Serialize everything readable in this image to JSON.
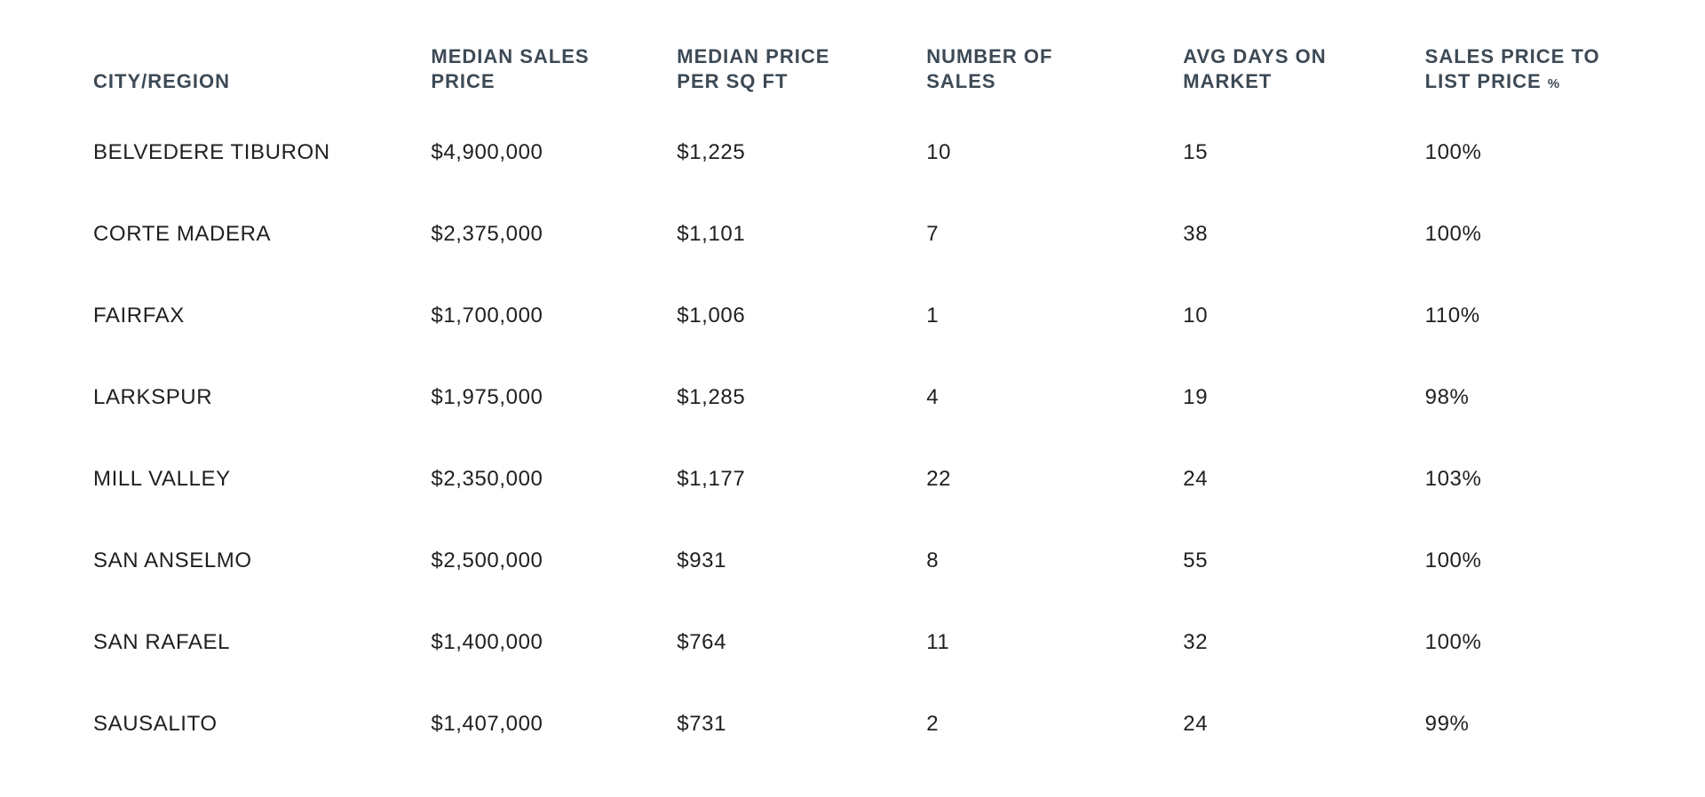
{
  "colors": {
    "background": "#ffffff",
    "header_text": "#3d4a55",
    "body_text": "#1e1f21"
  },
  "table": {
    "columns": [
      {
        "key": "city",
        "label": "CITY/REGION"
      },
      {
        "key": "median_sales_price",
        "label": "MEDIAN SALES\nPRICE"
      },
      {
        "key": "median_price_per_sqft",
        "label": "MEDIAN PRICE\nPER SQ FT"
      },
      {
        "key": "number_of_sales",
        "label": "NUMBER OF\nSALES"
      },
      {
        "key": "avg_days_on_market",
        "label": "AVG DAYS ON\nMARKET"
      },
      {
        "key": "sales_price_to_list",
        "label": "SALES PRICE TO\nLIST PRICE",
        "suffix": "%"
      }
    ],
    "rows": [
      [
        "BELVEDERE TIBURON",
        "$4,900,000",
        "$1,225",
        "10",
        "15",
        "100%"
      ],
      [
        "CORTE MADERA",
        "$2,375,000",
        "$1,101",
        "7",
        "38",
        "100%"
      ],
      [
        "FAIRFAX",
        "$1,700,000",
        "$1,006",
        "1",
        "10",
        "110%"
      ],
      [
        "LARKSPUR",
        "$1,975,000",
        "$1,285",
        "4",
        "19",
        "98%"
      ],
      [
        "MILL VALLEY",
        "$2,350,000",
        "$1,177",
        "22",
        "24",
        "103%"
      ],
      [
        "SAN ANSELMO",
        "$2,500,000",
        "$931",
        "8",
        "55",
        "100%"
      ],
      [
        "SAN RAFAEL",
        "$1,400,000",
        "$764",
        "11",
        "32",
        "100%"
      ],
      [
        "SAUSALITO",
        "$1,407,000",
        "$731",
        "2",
        "24",
        "99%"
      ]
    ]
  }
}
